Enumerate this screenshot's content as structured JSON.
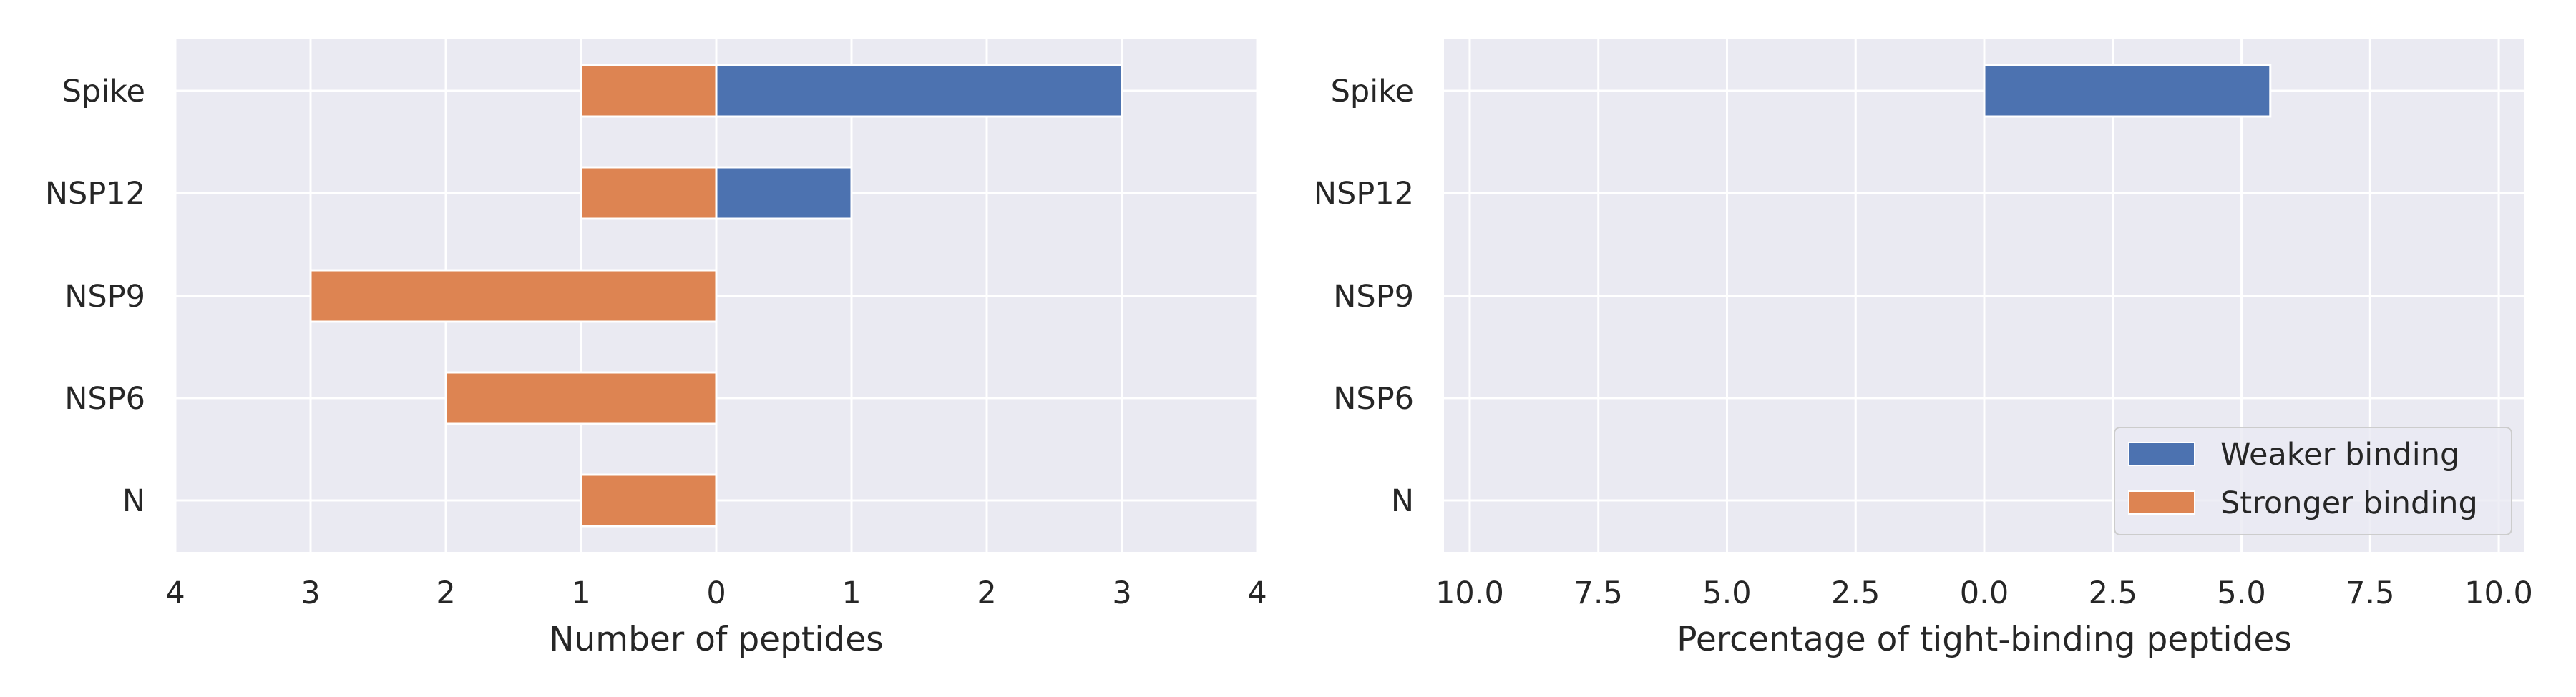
{
  "chart_data": [
    {
      "type": "bar",
      "orientation": "horizontal",
      "stacked": "diverging",
      "categories": [
        "Spike",
        "NSP12",
        "NSP9",
        "NSP6",
        "N"
      ],
      "series": [
        {
          "name": "Weaker binding",
          "color": "#4c72b0",
          "values": [
            3,
            1,
            0,
            0,
            0
          ]
        },
        {
          "name": "Stronger binding",
          "color": "#dd8452",
          "values": [
            1,
            1,
            3,
            2,
            1
          ]
        }
      ],
      "xlabel": "Number of peptides",
      "xlim": [
        -4,
        4
      ],
      "xticks": [
        -4,
        -3,
        -2,
        -1,
        0,
        1,
        2,
        3,
        4
      ],
      "xtick_labels": [
        "4",
        "3",
        "2",
        "1",
        "0",
        "1",
        "2",
        "3",
        "4"
      ],
      "grid": true,
      "legend": "none"
    },
    {
      "type": "bar",
      "orientation": "horizontal",
      "stacked": "diverging",
      "categories": [
        "Spike",
        "NSP12",
        "NSP9",
        "NSP6",
        "N"
      ],
      "series": [
        {
          "name": "Weaker binding",
          "color": "#4c72b0",
          "values": [
            5.56,
            0,
            0,
            0,
            0
          ]
        },
        {
          "name": "Stronger binding",
          "color": "#dd8452",
          "values": [
            0,
            0,
            0,
            0,
            0
          ]
        }
      ],
      "xlabel": "Percentage of tight-binding peptides",
      "xlim": [
        -10.5,
        10.5
      ],
      "xticks": [
        -10,
        -7.5,
        -5,
        -2.5,
        0,
        2.5,
        5,
        7.5,
        10
      ],
      "xtick_labels": [
        "10.0",
        "7.5",
        "5.0",
        "2.5",
        "0.0",
        "2.5",
        "5.0",
        "7.5",
        "10.0"
      ],
      "grid": true,
      "legend": "lower-right"
    }
  ]
}
